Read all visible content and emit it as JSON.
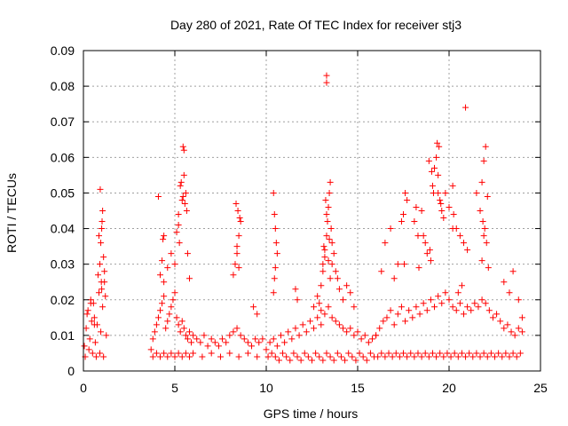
{
  "chart_data": {
    "type": "scatter",
    "title": "Day 280 of 2021, Rate Of TEC Index for receiver stj3",
    "xlabel": "GPS time / hours",
    "ylabel": "ROTI / TECUs",
    "xlim": [
      0,
      25
    ],
    "ylim": [
      0,
      0.09
    ],
    "xticks": [
      "0",
      "5",
      "10",
      "15",
      "20",
      "25"
    ],
    "yticks": [
      "0",
      "0.01",
      "0.02",
      "0.03",
      "0.04",
      "0.05",
      "0.06",
      "0.07",
      "0.08",
      "0.09"
    ],
    "grid": true,
    "marker": "plus",
    "marker_color": "#ff0000",
    "series": [
      {
        "x": [
          0.05,
          0.15,
          0.25,
          0.35,
          0.45,
          0.55,
          0.65,
          0.75,
          0.85,
          0.95,
          1.05,
          1.15,
          1.25,
          0.1,
          0.3,
          0.5,
          0.7,
          0.9,
          1.1,
          0.2,
          0.4,
          0.6,
          0.8,
          1.0,
          1.2,
          0.9,
          0.95,
          1.0,
          1.05,
          1.1,
          1.15,
          0.85,
          0.92,
          1.02,
          0.4,
          0.6,
          0.98,
          3.7,
          3.8,
          3.9,
          4.0,
          4.1,
          4.2,
          4.3,
          4.4,
          4.5,
          4.6,
          4.7,
          4.8,
          4.9,
          5.0,
          5.1,
          5.2,
          5.3,
          5.4,
          5.5,
          5.6,
          5.7,
          5.8,
          5.9,
          6.0,
          6.2,
          6.4,
          6.6,
          6.8,
          7.0,
          7.2,
          7.4,
          7.6,
          7.8,
          8.0,
          8.2,
          8.4,
          8.6,
          8.8,
          9.0,
          9.2,
          9.4,
          9.6,
          9.8,
          3.8,
          4.0,
          4.2,
          4.4,
          4.6,
          4.8,
          5.0,
          5.2,
          5.4,
          5.6,
          5.8,
          6.0,
          6.5,
          7.0,
          7.5,
          8.0,
          8.5,
          9.0,
          9.5,
          4.2,
          4.3,
          4.4,
          4.6,
          4.8,
          5.0,
          5.2,
          5.3,
          5.4,
          5.5,
          5.6,
          5.7,
          5.2,
          5.35,
          5.45,
          5.55,
          5.65,
          5.1,
          5.25,
          4.35,
          4.4,
          5.45,
          5.5,
          5.8,
          4.1,
          8.2,
          8.3,
          8.4,
          8.5,
          8.6,
          8.45,
          8.35,
          8.55,
          8.4,
          8.5,
          9.3,
          9.5,
          10.0,
          10.2,
          10.4,
          10.6,
          10.8,
          11.0,
          11.2,
          11.4,
          11.6,
          11.8,
          12.0,
          12.2,
          12.4,
          12.6,
          12.8,
          13.0,
          13.2,
          13.4,
          13.6,
          13.8,
          14.0,
          14.2,
          14.4,
          14.6,
          14.8,
          15.0,
          15.2,
          15.4,
          15.6,
          15.8,
          16.0,
          10.1,
          10.3,
          10.5,
          10.7,
          10.9,
          11.1,
          11.3,
          11.5,
          11.7,
          11.9,
          12.1,
          12.3,
          12.5,
          12.7,
          12.9,
          13.1,
          13.3,
          13.5,
          13.7,
          13.9,
          14.1,
          14.3,
          14.5,
          14.7,
          14.9,
          15.1,
          15.3,
          15.5,
          15.7,
          15.9,
          10.4,
          10.45,
          10.5,
          10.55,
          10.6,
          10.5,
          10.4,
          10.45,
          11.6,
          11.7,
          12.6,
          12.8,
          13.0,
          13.1,
          13.2,
          13.3,
          13.35,
          13.4,
          13.45,
          13.5,
          13.55,
          13.6,
          13.25,
          13.3,
          13.2,
          13.4,
          13.1,
          13.5,
          13.15,
          13.45,
          13.3,
          13.3,
          13.7,
          13.8,
          13.9,
          14.0,
          14.2,
          14.4,
          14.6,
          12.9,
          13.0,
          13.6,
          14.8,
          16.0,
          16.2,
          16.4,
          16.6,
          16.8,
          17.0,
          17.2,
          17.4,
          17.6,
          17.8,
          18.0,
          18.2,
          18.4,
          18.6,
          18.8,
          19.0,
          19.2,
          19.4,
          19.6,
          19.8,
          20.0,
          20.2,
          20.4,
          20.6,
          20.8,
          21.0,
          21.2,
          21.4,
          21.6,
          21.8,
          22.0,
          22.2,
          22.4,
          22.6,
          22.8,
          23.0,
          23.2,
          23.4,
          23.6,
          23.8,
          24.0,
          16.1,
          16.3,
          16.5,
          16.7,
          16.9,
          17.1,
          17.3,
          17.5,
          17.7,
          17.9,
          18.1,
          18.3,
          18.5,
          18.7,
          18.9,
          19.1,
          19.3,
          19.5,
          19.7,
          19.9,
          20.1,
          20.3,
          20.5,
          20.7,
          20.9,
          21.1,
          21.3,
          21.5,
          21.7,
          21.9,
          22.1,
          22.3,
          22.5,
          22.7,
          22.9,
          23.1,
          23.3,
          23.5,
          23.7,
          23.9,
          16.3,
          16.5,
          16.8,
          17.0,
          17.2,
          17.5,
          17.6,
          17.7,
          18.1,
          18.3,
          18.5,
          18.7,
          18.8,
          19.0,
          19.1,
          19.2,
          19.3,
          19.4,
          19.5,
          19.6,
          19.7,
          19.8,
          20.0,
          20.2,
          20.4,
          20.6,
          20.8,
          21.0,
          21.5,
          21.7,
          21.8,
          21.9,
          22.0,
          22.1,
          21.85,
          21.95,
          19.35,
          19.45,
          18.9,
          19.05,
          19.15,
          19.55,
          21.9,
          22.05,
          17.4,
          17.55,
          18.35,
          20.2,
          20.25,
          20.9,
          23.0,
          23.3,
          23.5,
          23.8,
          24.0,
          19.4,
          18.2,
          18.6,
          18.95,
          21.8,
          22.15,
          20.5,
          20.7
        ],
        "y": [
          0.007,
          0.012,
          0.017,
          0.009,
          0.014,
          0.019,
          0.008,
          0.013,
          0.022,
          0.011,
          0.018,
          0.025,
          0.01,
          0.004,
          0.006,
          0.005,
          0.004,
          0.005,
          0.004,
          0.016,
          0.019,
          0.013,
          0.027,
          0.023,
          0.021,
          0.03,
          0.036,
          0.04,
          0.045,
          0.032,
          0.028,
          0.038,
          0.051,
          0.042,
          0.02,
          0.015,
          0.025,
          0.006,
          0.009,
          0.011,
          0.013,
          0.015,
          0.017,
          0.019,
          0.021,
          0.012,
          0.014,
          0.016,
          0.018,
          0.02,
          0.022,
          0.015,
          0.013,
          0.011,
          0.014,
          0.012,
          0.01,
          0.009,
          0.011,
          0.008,
          0.01,
          0.009,
          0.008,
          0.01,
          0.007,
          0.009,
          0.008,
          0.007,
          0.009,
          0.008,
          0.01,
          0.011,
          0.012,
          0.01,
          0.009,
          0.008,
          0.007,
          0.009,
          0.008,
          0.009,
          0.004,
          0.005,
          0.004,
          0.005,
          0.004,
          0.005,
          0.004,
          0.005,
          0.004,
          0.005,
          0.004,
          0.005,
          0.004,
          0.005,
          0.004,
          0.005,
          0.004,
          0.005,
          0.004,
          0.027,
          0.031,
          0.025,
          0.029,
          0.033,
          0.03,
          0.044,
          0.052,
          0.048,
          0.055,
          0.05,
          0.033,
          0.041,
          0.053,
          0.049,
          0.047,
          0.045,
          0.039,
          0.036,
          0.037,
          0.038,
          0.063,
          0.062,
          0.026,
          0.049,
          0.027,
          0.03,
          0.035,
          0.038,
          0.042,
          0.045,
          0.047,
          0.043,
          0.033,
          0.029,
          0.018,
          0.016,
          0.006,
          0.008,
          0.009,
          0.007,
          0.01,
          0.008,
          0.011,
          0.009,
          0.012,
          0.01,
          0.013,
          0.011,
          0.014,
          0.012,
          0.015,
          0.013,
          0.016,
          0.018,
          0.015,
          0.014,
          0.013,
          0.012,
          0.011,
          0.012,
          0.01,
          0.011,
          0.009,
          0.01,
          0.008,
          0.009,
          0.01,
          0.004,
          0.005,
          0.004,
          0.003,
          0.005,
          0.004,
          0.003,
          0.005,
          0.004,
          0.003,
          0.005,
          0.004,
          0.003,
          0.005,
          0.004,
          0.003,
          0.005,
          0.004,
          0.003,
          0.005,
          0.004,
          0.003,
          0.005,
          0.004,
          0.003,
          0.005,
          0.004,
          0.003,
          0.005,
          0.004,
          0.05,
          0.044,
          0.04,
          0.036,
          0.033,
          0.029,
          0.022,
          0.026,
          0.023,
          0.02,
          0.018,
          0.021,
          0.024,
          0.03,
          0.034,
          0.038,
          0.042,
          0.046,
          0.05,
          0.053,
          0.04,
          0.036,
          0.048,
          0.044,
          0.032,
          0.031,
          0.028,
          0.026,
          0.035,
          0.037,
          0.081,
          0.083,
          0.033,
          0.028,
          0.026,
          0.023,
          0.02,
          0.024,
          0.022,
          0.019,
          0.017,
          0.03,
          0.018,
          0.01,
          0.012,
          0.014,
          0.015,
          0.017,
          0.013,
          0.016,
          0.018,
          0.014,
          0.017,
          0.015,
          0.018,
          0.016,
          0.019,
          0.017,
          0.02,
          0.018,
          0.021,
          0.019,
          0.022,
          0.02,
          0.018,
          0.017,
          0.019,
          0.016,
          0.018,
          0.017,
          0.019,
          0.018,
          0.02,
          0.019,
          0.017,
          0.015,
          0.016,
          0.014,
          0.012,
          0.013,
          0.011,
          0.01,
          0.012,
          0.011,
          0.004,
          0.005,
          0.004,
          0.005,
          0.004,
          0.005,
          0.004,
          0.005,
          0.004,
          0.005,
          0.004,
          0.005,
          0.004,
          0.005,
          0.004,
          0.005,
          0.004,
          0.005,
          0.004,
          0.005,
          0.004,
          0.005,
          0.004,
          0.005,
          0.004,
          0.005,
          0.004,
          0.005,
          0.004,
          0.005,
          0.004,
          0.005,
          0.004,
          0.005,
          0.004,
          0.005,
          0.004,
          0.005,
          0.004,
          0.005,
          0.028,
          0.036,
          0.04,
          0.026,
          0.03,
          0.044,
          0.05,
          0.048,
          0.042,
          0.038,
          0.045,
          0.036,
          0.033,
          0.031,
          0.052,
          0.057,
          0.06,
          0.055,
          0.048,
          0.045,
          0.043,
          0.05,
          0.046,
          0.052,
          0.04,
          0.038,
          0.036,
          0.034,
          0.05,
          0.045,
          0.053,
          0.059,
          0.063,
          0.049,
          0.042,
          0.04,
          0.064,
          0.063,
          0.059,
          0.056,
          0.05,
          0.047,
          0.038,
          0.036,
          0.042,
          0.03,
          0.029,
          0.04,
          0.044,
          0.074,
          0.025,
          0.022,
          0.028,
          0.02,
          0.015,
          0.05,
          0.046,
          0.038,
          0.034,
          0.031,
          0.029,
          0.022,
          0.024
        ]
      }
    ]
  }
}
